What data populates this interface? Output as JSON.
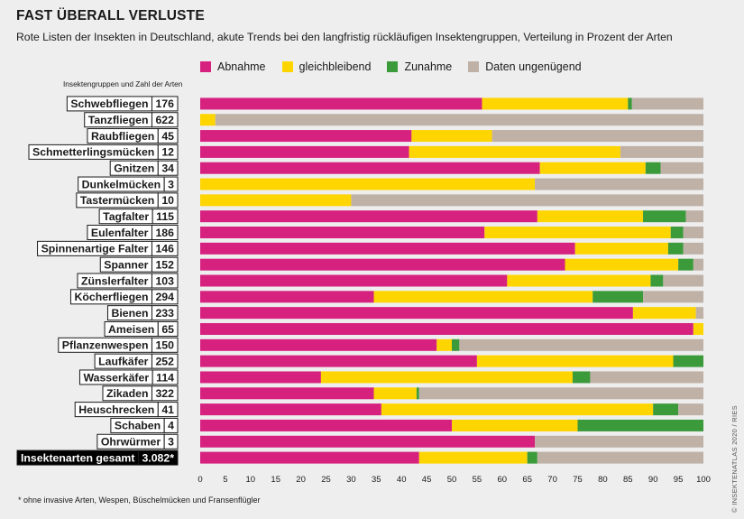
{
  "header": {
    "title": "FAST ÜBERALL VERLUSTE",
    "subtitle": "Rote Listen der Insekten in Deutschland, akute Trends bei den langfristig rückläufigen Insektengruppen, Verteilung in Prozent der Arten"
  },
  "column_header": "Insektengruppen und Zahl der Arten",
  "footnote": "* ohne invasive Arten, Wespen, Büschelmücken und Fransenflügler",
  "credit": "© INSEKTENATLAS 2020 / RIES",
  "colors": {
    "abnahme": "#d6217f",
    "gleichbleibend": "#ffd500",
    "zunahme": "#3b9a3a",
    "ungenuegend": "#bfb1a6",
    "label_border": "#1a1a1a",
    "total_bg": "#000000"
  },
  "chart_data": {
    "type": "bar",
    "orientation": "horizontal",
    "stacked": true,
    "xlim": [
      0,
      100
    ],
    "xticks": [
      "0",
      "5",
      "10",
      "15",
      "20",
      "25",
      "30",
      "35",
      "40",
      "45",
      "50",
      "55",
      "60",
      "65",
      "70",
      "75",
      "80",
      "85",
      "90",
      "95",
      "100"
    ],
    "legend": [
      "Abnahme",
      "gleichbleibend",
      "Zunahme",
      "Daten ungenügend"
    ],
    "legend_position": "top",
    "categories": [
      {
        "name": "Schwebfliegen",
        "count": "176"
      },
      {
        "name": "Tanzfliegen",
        "count": "622"
      },
      {
        "name": "Raubfliegen",
        "count": "45"
      },
      {
        "name": "Schmetterlingsmücken",
        "count": "12"
      },
      {
        "name": "Gnitzen",
        "count": "34"
      },
      {
        "name": "Dunkelmücken",
        "count": "3"
      },
      {
        "name": "Tastermücken",
        "count": "10"
      },
      {
        "name": "Tagfalter",
        "count": "115"
      },
      {
        "name": "Eulenfalter",
        "count": "186"
      },
      {
        "name": "Spinnenartige Falter",
        "count": "146"
      },
      {
        "name": "Spanner",
        "count": "152"
      },
      {
        "name": "Zünslerfalter",
        "count": "103"
      },
      {
        "name": "Köcherfliegen",
        "count": "294"
      },
      {
        "name": "Bienen",
        "count": "233"
      },
      {
        "name": "Ameisen",
        "count": "65"
      },
      {
        "name": "Pflanzenwespen",
        "count": "150"
      },
      {
        "name": "Laufkäfer",
        "count": "252"
      },
      {
        "name": "Wasserkäfer",
        "count": "114"
      },
      {
        "name": "Zikaden",
        "count": "322"
      },
      {
        "name": "Heuschrecken",
        "count": "41"
      },
      {
        "name": "Schaben",
        "count": "4"
      },
      {
        "name": "Ohrwürmer",
        "count": "3"
      },
      {
        "name": "Insektenarten gesamt",
        "count": "3.082*",
        "total": true
      }
    ],
    "series": [
      {
        "name": "Abnahme",
        "values": [
          56,
          0,
          42,
          41.5,
          67.5,
          0,
          0,
          67,
          56.5,
          74.5,
          72.5,
          61,
          34.5,
          86,
          98,
          47,
          55,
          24,
          34.5,
          36,
          50,
          66.5,
          43.5
        ]
      },
      {
        "name": "gleichbleibend",
        "values": [
          29,
          3,
          16,
          42,
          21,
          66.5,
          30,
          21,
          37,
          18.5,
          22.5,
          28.5,
          43.5,
          12.5,
          2,
          3,
          39,
          50,
          8.5,
          54,
          25,
          0,
          21.5
        ]
      },
      {
        "name": "Zunahme",
        "values": [
          0.8,
          0,
          0,
          0,
          3,
          0,
          0,
          8.5,
          2.5,
          3,
          3,
          2.5,
          10,
          0,
          0,
          1.5,
          6,
          3.5,
          0.5,
          5,
          25,
          0,
          2
        ]
      },
      {
        "name": "Daten ungenügend",
        "values": [
          14.2,
          97,
          42,
          16.5,
          8.5,
          33.5,
          70,
          3.5,
          4,
          4,
          2,
          8,
          12,
          1.5,
          0,
          48.5,
          0,
          22.5,
          56.5,
          5,
          0,
          33.5,
          33
        ]
      }
    ]
  }
}
